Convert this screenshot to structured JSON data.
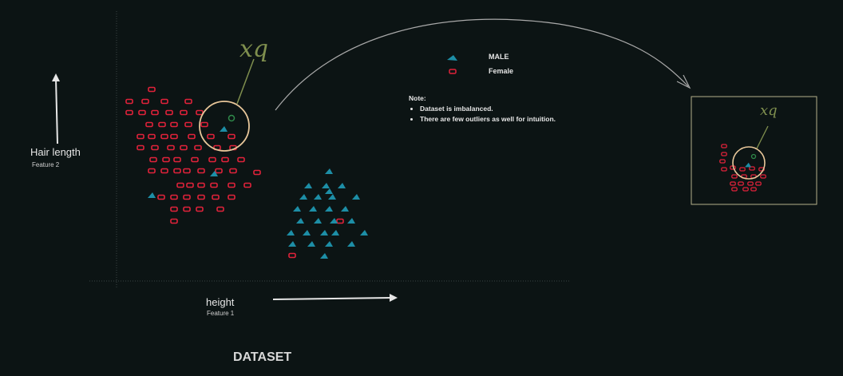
{
  "axes": {
    "y_label": "Hair length",
    "y_sub": "Feature 2",
    "x_label": "height",
    "x_sub": "Feature 1"
  },
  "legend": {
    "male": "MALE",
    "female": "Female"
  },
  "note": {
    "title": "Note:",
    "items": [
      "Dataset is imbalanced.",
      "There are few outliers as well for intuition."
    ]
  },
  "query_label": "xq",
  "caption": "DATASET",
  "colors": {
    "background": "#0c1414",
    "female": "#e0223a",
    "male": "#1d8ea6",
    "circle": "#e8c79a",
    "query_point": "#2f8a4a",
    "annotation": "#7f8f4e",
    "axis": "#cfcfcf"
  }
}
